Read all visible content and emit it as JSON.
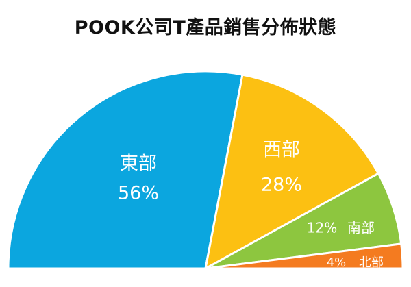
{
  "chart_data": {
    "type": "pie",
    "variant": "half-pie",
    "title": "POOK公司T產品銷售分佈狀態",
    "slices": [
      {
        "label": "東部",
        "value": 56,
        "value_label": "56%",
        "color": "#0BA6DF"
      },
      {
        "label": "西部",
        "value": 28,
        "value_label": "28%",
        "color": "#FCC012"
      },
      {
        "label": "南部",
        "value": 12,
        "value_label": "12%",
        "color": "#8DC63F"
      },
      {
        "label": "北部",
        "value": 4,
        "value_label": "4%",
        "color": "#F47B20"
      }
    ],
    "slice_border_color": "#ffffff",
    "label_color": "#ffffff"
  }
}
